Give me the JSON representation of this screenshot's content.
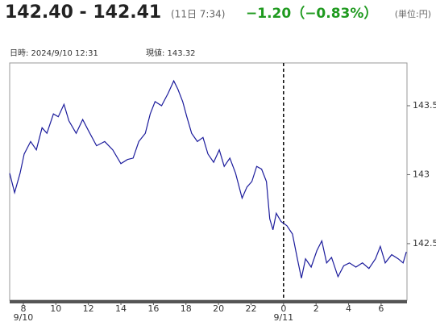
{
  "chart_data": {
    "type": "line",
    "price": "142.40 - 142.41",
    "update_time": "(11日 7:34)",
    "change": "−1.20（−0.83%）",
    "unit": "(単位:円)",
    "cursor_time": "日時: 2024/9/10  12:31",
    "cursor_value": "現値: 143.32",
    "x": [
      7.16,
      7.46,
      7.8,
      8.05,
      8.45,
      8.8,
      9.15,
      9.45,
      9.85,
      10.15,
      10.5,
      10.8,
      11.25,
      11.65,
      12.0,
      12.5,
      13.0,
      13.5,
      14.0,
      14.4,
      14.75,
      15.1,
      15.5,
      15.8,
      16.1,
      16.5,
      16.9,
      17.25,
      17.5,
      17.8,
      18.05,
      18.35,
      18.7,
      19.05,
      19.35,
      19.7,
      20.05,
      20.35,
      20.7,
      21.05,
      21.45,
      21.75,
      22.05,
      22.35,
      22.65,
      22.95,
      23.15,
      23.35,
      23.55,
      23.85,
      24.2,
      24.55,
      24.85,
      25.1,
      25.35,
      25.7,
      26.05,
      26.35,
      26.65,
      26.95,
      27.35,
      27.7,
      28.05,
      28.45,
      28.85,
      29.25,
      29.65,
      29.95,
      30.25,
      30.65,
      31.05,
      31.35,
      31.55
    ],
    "series": [
      {
        "color": "#1c1c9c",
        "values": [
          143.01,
          142.87,
          143.01,
          143.15,
          143.24,
          143.18,
          143.34,
          143.3,
          143.44,
          143.42,
          143.51,
          143.39,
          143.3,
          143.4,
          143.32,
          143.21,
          143.24,
          143.18,
          143.08,
          143.11,
          143.12,
          143.24,
          143.3,
          143.44,
          143.53,
          143.5,
          143.59,
          143.68,
          143.62,
          143.53,
          143.42,
          143.3,
          143.24,
          143.27,
          143.15,
          143.09,
          143.18,
          143.06,
          143.12,
          143.01,
          142.83,
          142.91,
          142.95,
          143.06,
          143.04,
          142.95,
          142.68,
          142.6,
          142.72,
          142.66,
          142.63,
          142.57,
          142.39,
          142.25,
          142.39,
          142.33,
          142.45,
          142.52,
          142.36,
          142.4,
          142.26,
          142.34,
          142.36,
          142.33,
          142.36,
          142.32,
          142.39,
          142.48,
          142.36,
          142.42,
          142.39,
          142.36,
          142.44
        ]
      }
    ],
    "xlim": [
      7.16,
      31.59
    ],
    "xticks": [
      8,
      10,
      12,
      14,
      16,
      18,
      20,
      22,
      {
        "value": 24,
        "label": "0"
      },
      {
        "value": 26,
        "label": "2"
      },
      {
        "value": 28,
        "label": "4"
      },
      {
        "value": 30,
        "label": "6"
      }
    ],
    "date_labels": [
      {
        "value": 8,
        "label": "9/10"
      },
      {
        "value": 24,
        "label": "9/11"
      }
    ],
    "divider_x": 24,
    "ylim": [
      142.09,
      143.81
    ],
    "yticks": [
      142.5,
      143,
      143.5
    ]
  }
}
